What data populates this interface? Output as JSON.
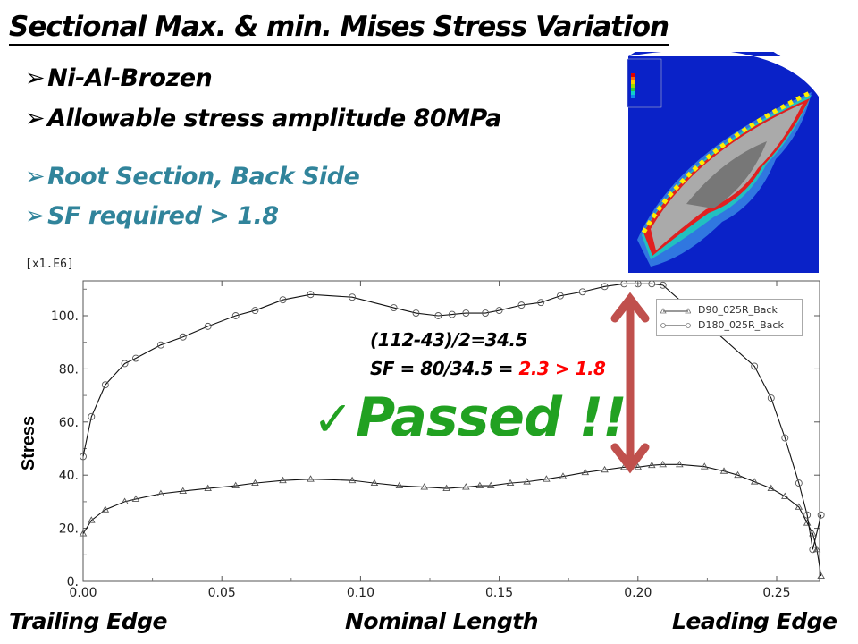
{
  "slide": {
    "title": "Sectional Max. & min. Mises Stress Variation",
    "bullets": [
      {
        "text": "Ni-Al-Brozen",
        "color": "#000000"
      },
      {
        "text": "Allowable stress amplitude 80MPa",
        "color": "#000000"
      },
      {
        "text": "Root Section, Back Side",
        "color": "#31849b"
      },
      {
        "text": "SF required > 1.8",
        "color": "#31849b"
      }
    ],
    "bullet_icon": "arrow-bullet-icon",
    "calc_line1": "(112-43)/2=34.5",
    "calc_line2_prefix": "SF = 80/34.5 = ",
    "calc_line2_result": "2.3 > 1.8",
    "passed_label": "Passed !!",
    "check_icon": "✓",
    "bottom_labels": {
      "left": "Trailing Edge",
      "center": "Nominal Length",
      "right": "Leading Edge"
    },
    "colors": {
      "passed": "#21a121",
      "result": "#ff0000",
      "arrow": "#c0504d"
    }
  },
  "chart_data": {
    "type": "line",
    "title": "",
    "xlabel": "",
    "ylabel": "Stress",
    "y_multiplier_label": "[x1.E6]",
    "xlim": [
      0,
      0.266
    ],
    "ylim": [
      0,
      113
    ],
    "xticks": [
      "0.00",
      "0.05",
      "0.10",
      "0.15",
      "0.20",
      "0.25"
    ],
    "xtick_values": [
      0,
      0.05,
      0.1,
      0.15,
      0.2,
      0.25
    ],
    "yticks": [
      "0.",
      "20.",
      "40.",
      "60.",
      "80.",
      "100."
    ],
    "ytick_values": [
      0,
      20,
      40,
      60,
      80,
      100
    ],
    "legend_position": "top-right",
    "series": [
      {
        "name": "D90_025R_Back",
        "marker": "triangle",
        "x": [
          0,
          0.003,
          0.008,
          0.015,
          0.019,
          0.028,
          0.036,
          0.045,
          0.055,
          0.062,
          0.072,
          0.082,
          0.097,
          0.105,
          0.114,
          0.123,
          0.131,
          0.138,
          0.143,
          0.147,
          0.154,
          0.16,
          0.167,
          0.173,
          0.181,
          0.188,
          0.195,
          0.2,
          0.205,
          0.209,
          0.215,
          0.224,
          0.231,
          0.236,
          0.242,
          0.248,
          0.253,
          0.258,
          0.261,
          0.263,
          0.2645,
          0.266
        ],
        "y": [
          18,
          23,
          27,
          30,
          31,
          33,
          34,
          35,
          36,
          37,
          38,
          38.5,
          38,
          37,
          36,
          35.5,
          35,
          35.5,
          36,
          36,
          37,
          37.5,
          38.5,
          39.5,
          41,
          42,
          43,
          43,
          43.7,
          44,
          44,
          43.2,
          41.5,
          40,
          37.5,
          35,
          32,
          28,
          22,
          18,
          12,
          2
        ]
      },
      {
        "name": "D180_025R_Back",
        "marker": "circle",
        "x": [
          0,
          0.003,
          0.008,
          0.015,
          0.019,
          0.028,
          0.036,
          0.045,
          0.055,
          0.062,
          0.072,
          0.082,
          0.097,
          0.112,
          0.12,
          0.128,
          0.133,
          0.138,
          0.145,
          0.15,
          0.158,
          0.165,
          0.172,
          0.18,
          0.188,
          0.195,
          0.2,
          0.205,
          0.209,
          0.242,
          0.248,
          0.253,
          0.258,
          0.261,
          0.263,
          0.266
        ],
        "y": [
          47,
          62,
          74,
          82,
          84,
          89,
          92,
          96,
          100,
          102,
          106,
          108,
          107,
          103,
          101,
          100,
          100.5,
          101,
          101,
          102,
          104,
          105,
          107.5,
          109,
          111,
          112,
          112,
          112,
          111.5,
          81,
          69,
          54,
          37,
          25,
          12,
          25
        ]
      }
    ],
    "annotation": "double-headed arrow from max (~112) to min (~43) near x = 0.197"
  }
}
